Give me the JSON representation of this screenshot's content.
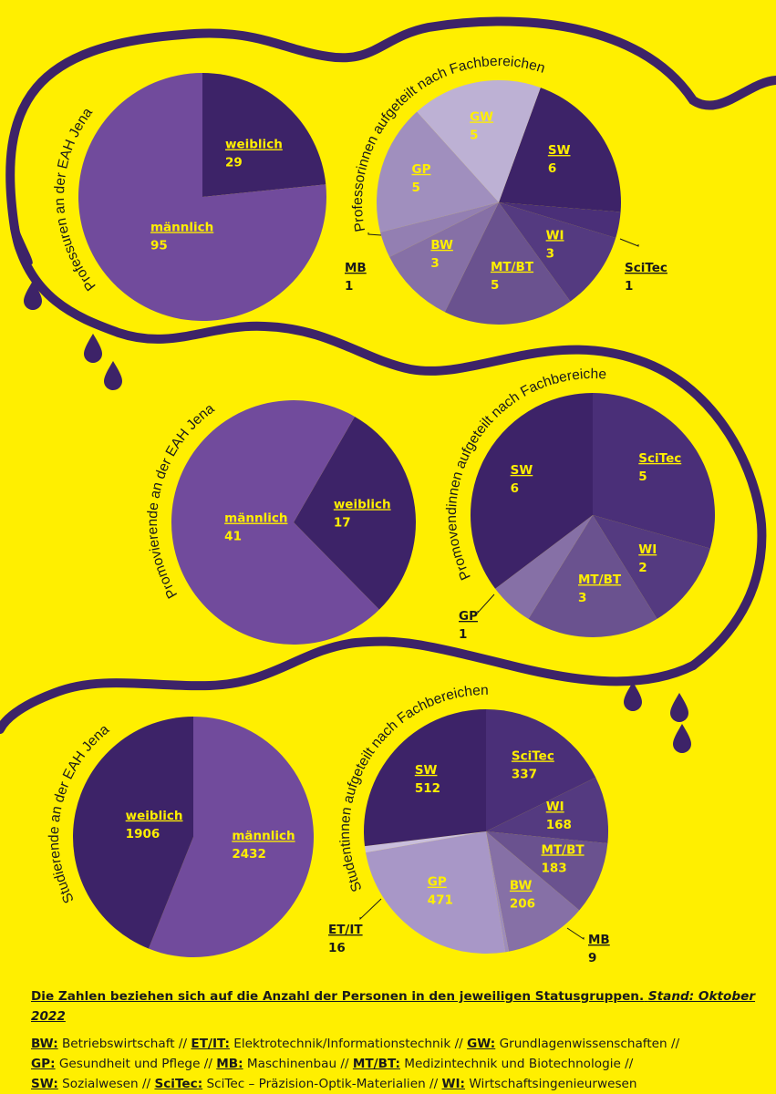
{
  "colors": {
    "background": "#ffef00",
    "ribbon": "#3d2368",
    "label_highlight": "#ffef00",
    "label_text": "#1a1a1a"
  },
  "chart_data": [
    {
      "id": "prof-total",
      "type": "pie",
      "title": "Professuren an der EAH Jena",
      "slices": [
        {
          "label": "weiblich",
          "value": 29,
          "color": "#3d2368"
        },
        {
          "label": "männlich",
          "value": 95,
          "color": "#714b9c"
        }
      ]
    },
    {
      "id": "prof-faculty",
      "type": "pie",
      "title": "Professorinnen aufgeteilt nach Fachbereichen",
      "slices": [
        {
          "label": "SW",
          "value": 6,
          "color": "#3d2368"
        },
        {
          "label": "SciTec",
          "value": 1,
          "color": "#4a2f78"
        },
        {
          "label": "WI",
          "value": 3,
          "color": "#543a80"
        },
        {
          "label": "MT/BT",
          "value": 5,
          "color": "#6a528f"
        },
        {
          "label": "BW",
          "value": 3,
          "color": "#8670a6"
        },
        {
          "label": "MB",
          "value": 1,
          "color": "#937fb2"
        },
        {
          "label": "GP",
          "value": 5,
          "color": "#a08fbe"
        },
        {
          "label": "GW",
          "value": 5,
          "color": "#bdb1d4"
        }
      ]
    },
    {
      "id": "promo-total",
      "type": "pie",
      "title": "Promovierende an der EAH Jena",
      "slices": [
        {
          "label": "weiblich",
          "value": 17,
          "color": "#3d2368"
        },
        {
          "label": "männlich",
          "value": 41,
          "color": "#714b9c"
        }
      ]
    },
    {
      "id": "promo-faculty",
      "type": "pie",
      "title": "Promovendinnen aufgeteilt nach Fachbereichen",
      "slices": [
        {
          "label": "SciTec",
          "value": 5,
          "color": "#4a2f78"
        },
        {
          "label": "WI",
          "value": 2,
          "color": "#543a80"
        },
        {
          "label": "MT/BT",
          "value": 3,
          "color": "#6a528f"
        },
        {
          "label": "GP",
          "value": 1,
          "color": "#8670a6"
        },
        {
          "label": "SW",
          "value": 6,
          "color": "#3d2368"
        }
      ]
    },
    {
      "id": "stud-total",
      "type": "pie",
      "title": "Studierende an der EAH Jena",
      "slices": [
        {
          "label": "männlich",
          "value": 2432,
          "color": "#714b9c"
        },
        {
          "label": "weiblich",
          "value": 1906,
          "color": "#3d2368"
        }
      ]
    },
    {
      "id": "stud-faculty",
      "type": "pie",
      "title": "Studentinnen aufgeteilt nach Fachbereichen",
      "slices": [
        {
          "label": "SciTec",
          "value": 337,
          "color": "#4a2f78"
        },
        {
          "label": "WI",
          "value": 168,
          "color": "#543a80"
        },
        {
          "label": "MT/BT",
          "value": 183,
          "color": "#6a528f"
        },
        {
          "label": "BW",
          "value": 206,
          "color": "#8670a6"
        },
        {
          "label": "MB",
          "value": 9,
          "color": "#9d8cbc"
        },
        {
          "label": "GP",
          "value": 471,
          "color": "#a897c7"
        },
        {
          "label": "ET/IT",
          "value": 16,
          "color": "#c9bedc"
        },
        {
          "label": "SW",
          "value": 512,
          "color": "#3d2368"
        }
      ]
    }
  ],
  "footer": {
    "note": "Die Zahlen beziehen sich auf die Anzahl der Personen in den jeweiligen Statusgruppen.",
    "note_date": "Stand: Oktober 2022",
    "legend_lines": [
      [
        {
          "abbr": "BW:",
          "text": " Betriebswirtschaft // "
        },
        {
          "abbr": "ET/IT:",
          "text": " Elektrotechnik/Informationstechnik // "
        },
        {
          "abbr": "GW:",
          "text": " Grundlagenwissenschaften //"
        }
      ],
      [
        {
          "abbr": "GP:",
          "text": " Gesundheit und Pflege // "
        },
        {
          "abbr": "MB:",
          "text": " Maschinenbau // "
        },
        {
          "abbr": "MT/BT:",
          "text": " Medizintechnik und Biotechnologie //"
        }
      ],
      [
        {
          "abbr": "SW:",
          "text": " Sozialwesen // "
        },
        {
          "abbr": "SciTec:",
          "text": " SciTec – Präzision-Optik-Materialien // "
        },
        {
          "abbr": "WI:",
          "text": " Wirtschaftsingenieurwesen"
        }
      ]
    ]
  }
}
